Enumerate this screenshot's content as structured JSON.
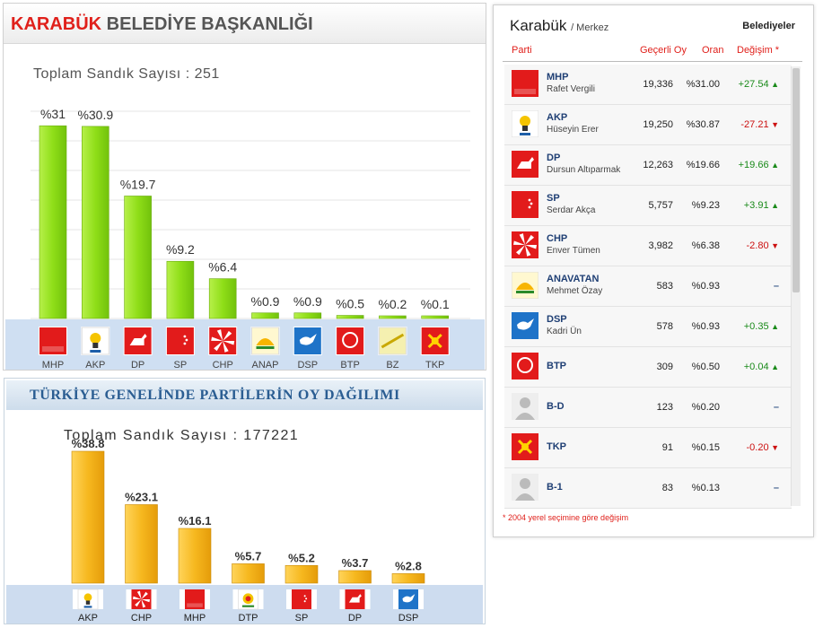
{
  "karabuk_chart": {
    "title_red": "KARABÜK",
    "title_rest": "BELEDİYE BAŞKANLIĞI",
    "total_label": "Toplam Sandık Sayısı : 251"
  },
  "turkey_chart": {
    "title": "TÜRKİYE GENELİNDE PARTİLERİN OY DAĞILIMI",
    "total_label": "Toplam Sandık Sayısı : 177221"
  },
  "chart_data": [
    {
      "type": "bar",
      "title": "KARABÜK BELEDİYE BAŞKANLIĞI",
      "categories": [
        "MHP",
        "AKP",
        "DP",
        "SP",
        "CHP",
        "ANAP",
        "DSP",
        "BTP",
        "BZ",
        "TKP"
      ],
      "values": [
        31,
        30.9,
        19.7,
        9.2,
        6.4,
        0.9,
        0.9,
        0.5,
        0.2,
        0.1
      ],
      "value_labels": [
        "%31",
        "%30.9",
        "%19.7",
        "%9.2",
        "%6.4",
        "%0.9",
        "%0.9",
        "%0.5",
        "%0.2",
        "%0.1"
      ],
      "ylim": [
        0,
        35
      ],
      "grid": true,
      "bar_color": "#8fde18"
    },
    {
      "type": "bar",
      "title": "TÜRKİYE GENELİNDE PARTİLERİN OY DAĞILIMI",
      "categories": [
        "AKP",
        "CHP",
        "MHP",
        "DTP",
        "SP",
        "DP",
        "DSP"
      ],
      "values": [
        38.8,
        23.1,
        16.1,
        5.7,
        5.2,
        3.7,
        2.8
      ],
      "value_labels": [
        "%38.8",
        "%23.1",
        "%16.1",
        "%5.7",
        "%5.2",
        "%3.7",
        "%2.8"
      ],
      "ylim": [
        0,
        45
      ],
      "grid": false,
      "bar_color": "#f6b81f"
    }
  ],
  "results": {
    "city": "Karabük",
    "district": "/ Merkez",
    "type": "Belediyeler",
    "columns": [
      "Parti",
      "Geçerli Oy",
      "Oran",
      "Değişim *"
    ],
    "rows": [
      {
        "party": "MHP",
        "candidate": "Rafet Vergili",
        "votes": "19,336",
        "rate": "%31.00",
        "change": "+27.54",
        "dir": "up",
        "logo": "mhp-logo"
      },
      {
        "party": "AKP",
        "candidate": "Hüseyin Erer",
        "votes": "19,250",
        "rate": "%30.87",
        "change": "-27.21",
        "dir": "down",
        "logo": "akp-logo"
      },
      {
        "party": "DP",
        "candidate": "Dursun Altıparmak",
        "votes": "12,263",
        "rate": "%19.66",
        "change": "+19.66",
        "dir": "up",
        "logo": "dp-logo"
      },
      {
        "party": "SP",
        "candidate": "Serdar Akça",
        "votes": "5,757",
        "rate": "%9.23",
        "change": "+3.91",
        "dir": "up",
        "logo": "sp-logo"
      },
      {
        "party": "CHP",
        "candidate": "Enver Tümen",
        "votes": "3,982",
        "rate": "%6.38",
        "change": "-2.80",
        "dir": "down",
        "logo": "chp-logo"
      },
      {
        "party": "ANAVATAN",
        "candidate": "Mehmet Özay",
        "votes": "583",
        "rate": "%0.93",
        "change": "–",
        "dir": "none",
        "logo": "anap-logo"
      },
      {
        "party": "DSP",
        "candidate": "Kadri Ün",
        "votes": "578",
        "rate": "%0.93",
        "change": "+0.35",
        "dir": "up",
        "logo": "dsp-logo"
      },
      {
        "party": "BTP",
        "candidate": "",
        "votes": "309",
        "rate": "%0.50",
        "change": "+0.04",
        "dir": "up",
        "logo": "btp-logo"
      },
      {
        "party": "B-D",
        "candidate": "",
        "votes": "123",
        "rate": "%0.20",
        "change": "–",
        "dir": "none",
        "logo": "person-placeholder-icon"
      },
      {
        "party": "TKP",
        "candidate": "",
        "votes": "91",
        "rate": "%0.15",
        "change": "-0.20",
        "dir": "down",
        "logo": "tkp-logo"
      },
      {
        "party": "B-1",
        "candidate": "",
        "votes": "83",
        "rate": "%0.13",
        "change": "–",
        "dir": "none",
        "logo": "person-placeholder-icon"
      }
    ],
    "footnote": "* 2004 yerel seçimine göre değişim"
  },
  "colors": {
    "accent_red": "#e0201b",
    "green_bar": "#8fde18",
    "orange_bar": "#f6b81f",
    "up": "#1a8a1a",
    "down": "#cc1111"
  }
}
